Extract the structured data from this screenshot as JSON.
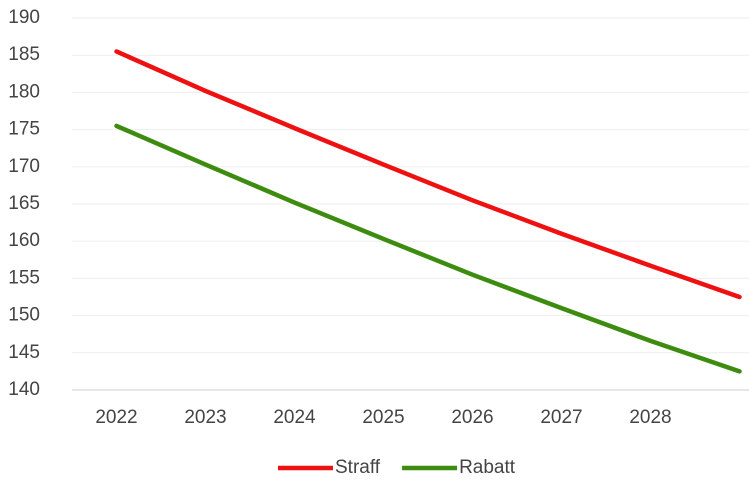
{
  "chart_data": {
    "type": "line",
    "categories": [
      "2022",
      "2023",
      "2024",
      "2025",
      "2026",
      "2027",
      "2028",
      null
    ],
    "series": [
      {
        "name": "Straff",
        "color": "#ee1111",
        "values": [
          185.5,
          180.2,
          175.2,
          170.3,
          165.5,
          161,
          156.7,
          152.5
        ]
      },
      {
        "name": "Rabatt",
        "color": "#3d8c10",
        "values": [
          175.5,
          170.3,
          165.2,
          160.3,
          155.5,
          151,
          146.6,
          142.5
        ]
      }
    ],
    "ylim": [
      140,
      190
    ],
    "yticks": [
      140,
      145,
      150,
      155,
      160,
      165,
      170,
      175,
      180,
      185,
      190
    ],
    "grid": true,
    "legend": "bottom"
  }
}
